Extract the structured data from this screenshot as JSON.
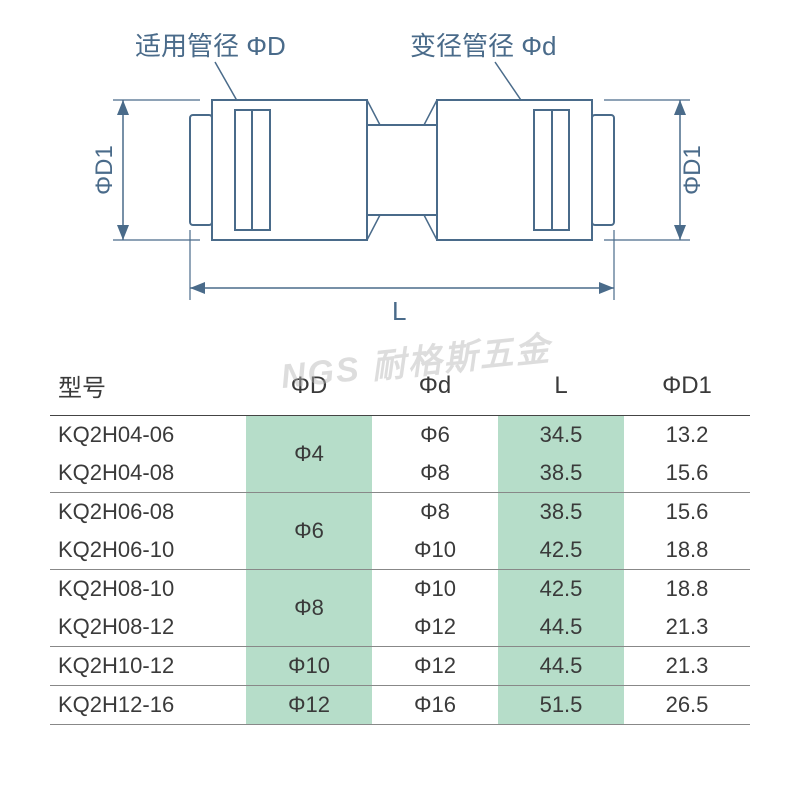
{
  "diagram": {
    "label_left": "适用管径 ΦD",
    "label_right": "变径管径 Φd",
    "dim_left": "ΦD1",
    "dim_right": "ΦD1",
    "dim_bottom": "L",
    "stroke_color": "#4a6b8a",
    "fill_color": "#ffffff",
    "stroke_width": 2
  },
  "watermark": {
    "eng": "NGS",
    "chn": " 耐格斯五金"
  },
  "table": {
    "headers": {
      "model": "型号",
      "D": "ΦD",
      "d": "Φd",
      "L": "L",
      "D1": "ΦD1"
    },
    "groups": [
      {
        "D": "Φ4",
        "rows": [
          {
            "model": "KQ2H04-06",
            "d": "Φ6",
            "L": "34.5",
            "D1": "13.2"
          },
          {
            "model": "KQ2H04-08",
            "d": "Φ8",
            "L": "38.5",
            "D1": "15.6"
          }
        ]
      },
      {
        "D": "Φ6",
        "rows": [
          {
            "model": "KQ2H06-08",
            "d": "Φ8",
            "L": "38.5",
            "D1": "15.6"
          },
          {
            "model": "KQ2H06-10",
            "d": "Φ10",
            "L": "42.5",
            "D1": "18.8"
          }
        ]
      },
      {
        "D": "Φ8",
        "rows": [
          {
            "model": "KQ2H08-10",
            "d": "Φ10",
            "L": "42.5",
            "D1": "18.8"
          },
          {
            "model": "KQ2H08-12",
            "d": "Φ12",
            "L": "44.5",
            "D1": "21.3"
          }
        ]
      },
      {
        "D": "Φ10",
        "rows": [
          {
            "model": "KQ2H10-12",
            "d": "Φ12",
            "L": "44.5",
            "D1": "21.3"
          }
        ]
      },
      {
        "D": "Φ12",
        "rows": [
          {
            "model": "KQ2H12-16",
            "d": "Φ16",
            "L": "51.5",
            "D1": "26.5"
          }
        ]
      }
    ]
  }
}
